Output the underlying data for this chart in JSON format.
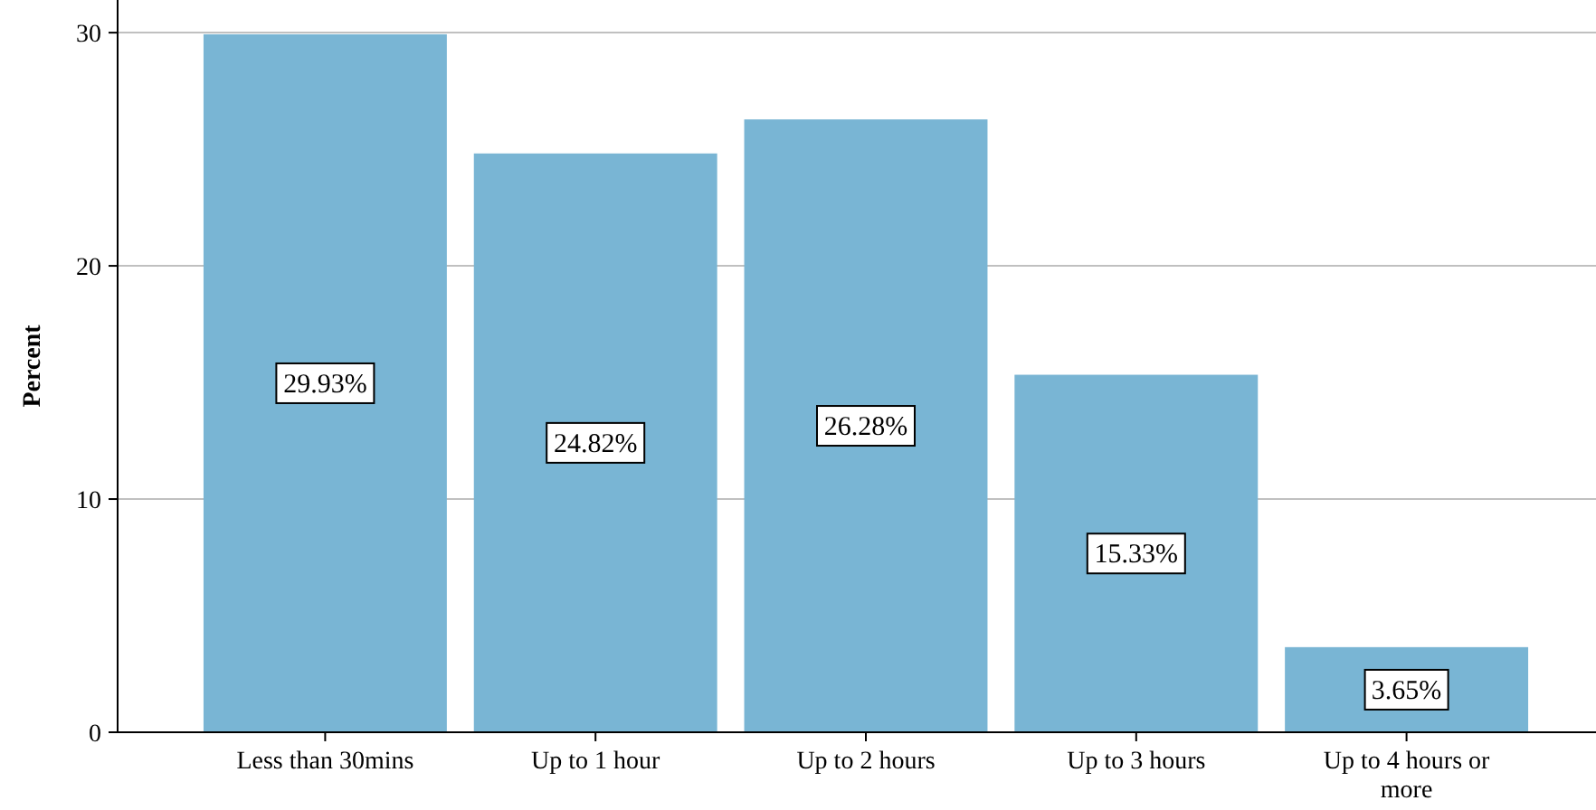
{
  "chart_data": {
    "type": "bar",
    "ylabel": "Percent",
    "categories": [
      "Less than 30mins",
      "Up to 1 hour",
      "Up to 2 hours",
      "Up to 3 hours",
      "Up to 4 hours or more"
    ],
    "values": [
      29.93,
      24.82,
      26.28,
      15.33,
      3.65
    ],
    "value_labels": [
      "29.93%",
      "24.82%",
      "26.28%",
      "15.33%",
      "3.65%"
    ],
    "color": "#79b5d4",
    "ylim": [
      0,
      31.4
    ],
    "yticks": [
      0,
      10,
      20,
      30
    ],
    "grid": "y"
  }
}
